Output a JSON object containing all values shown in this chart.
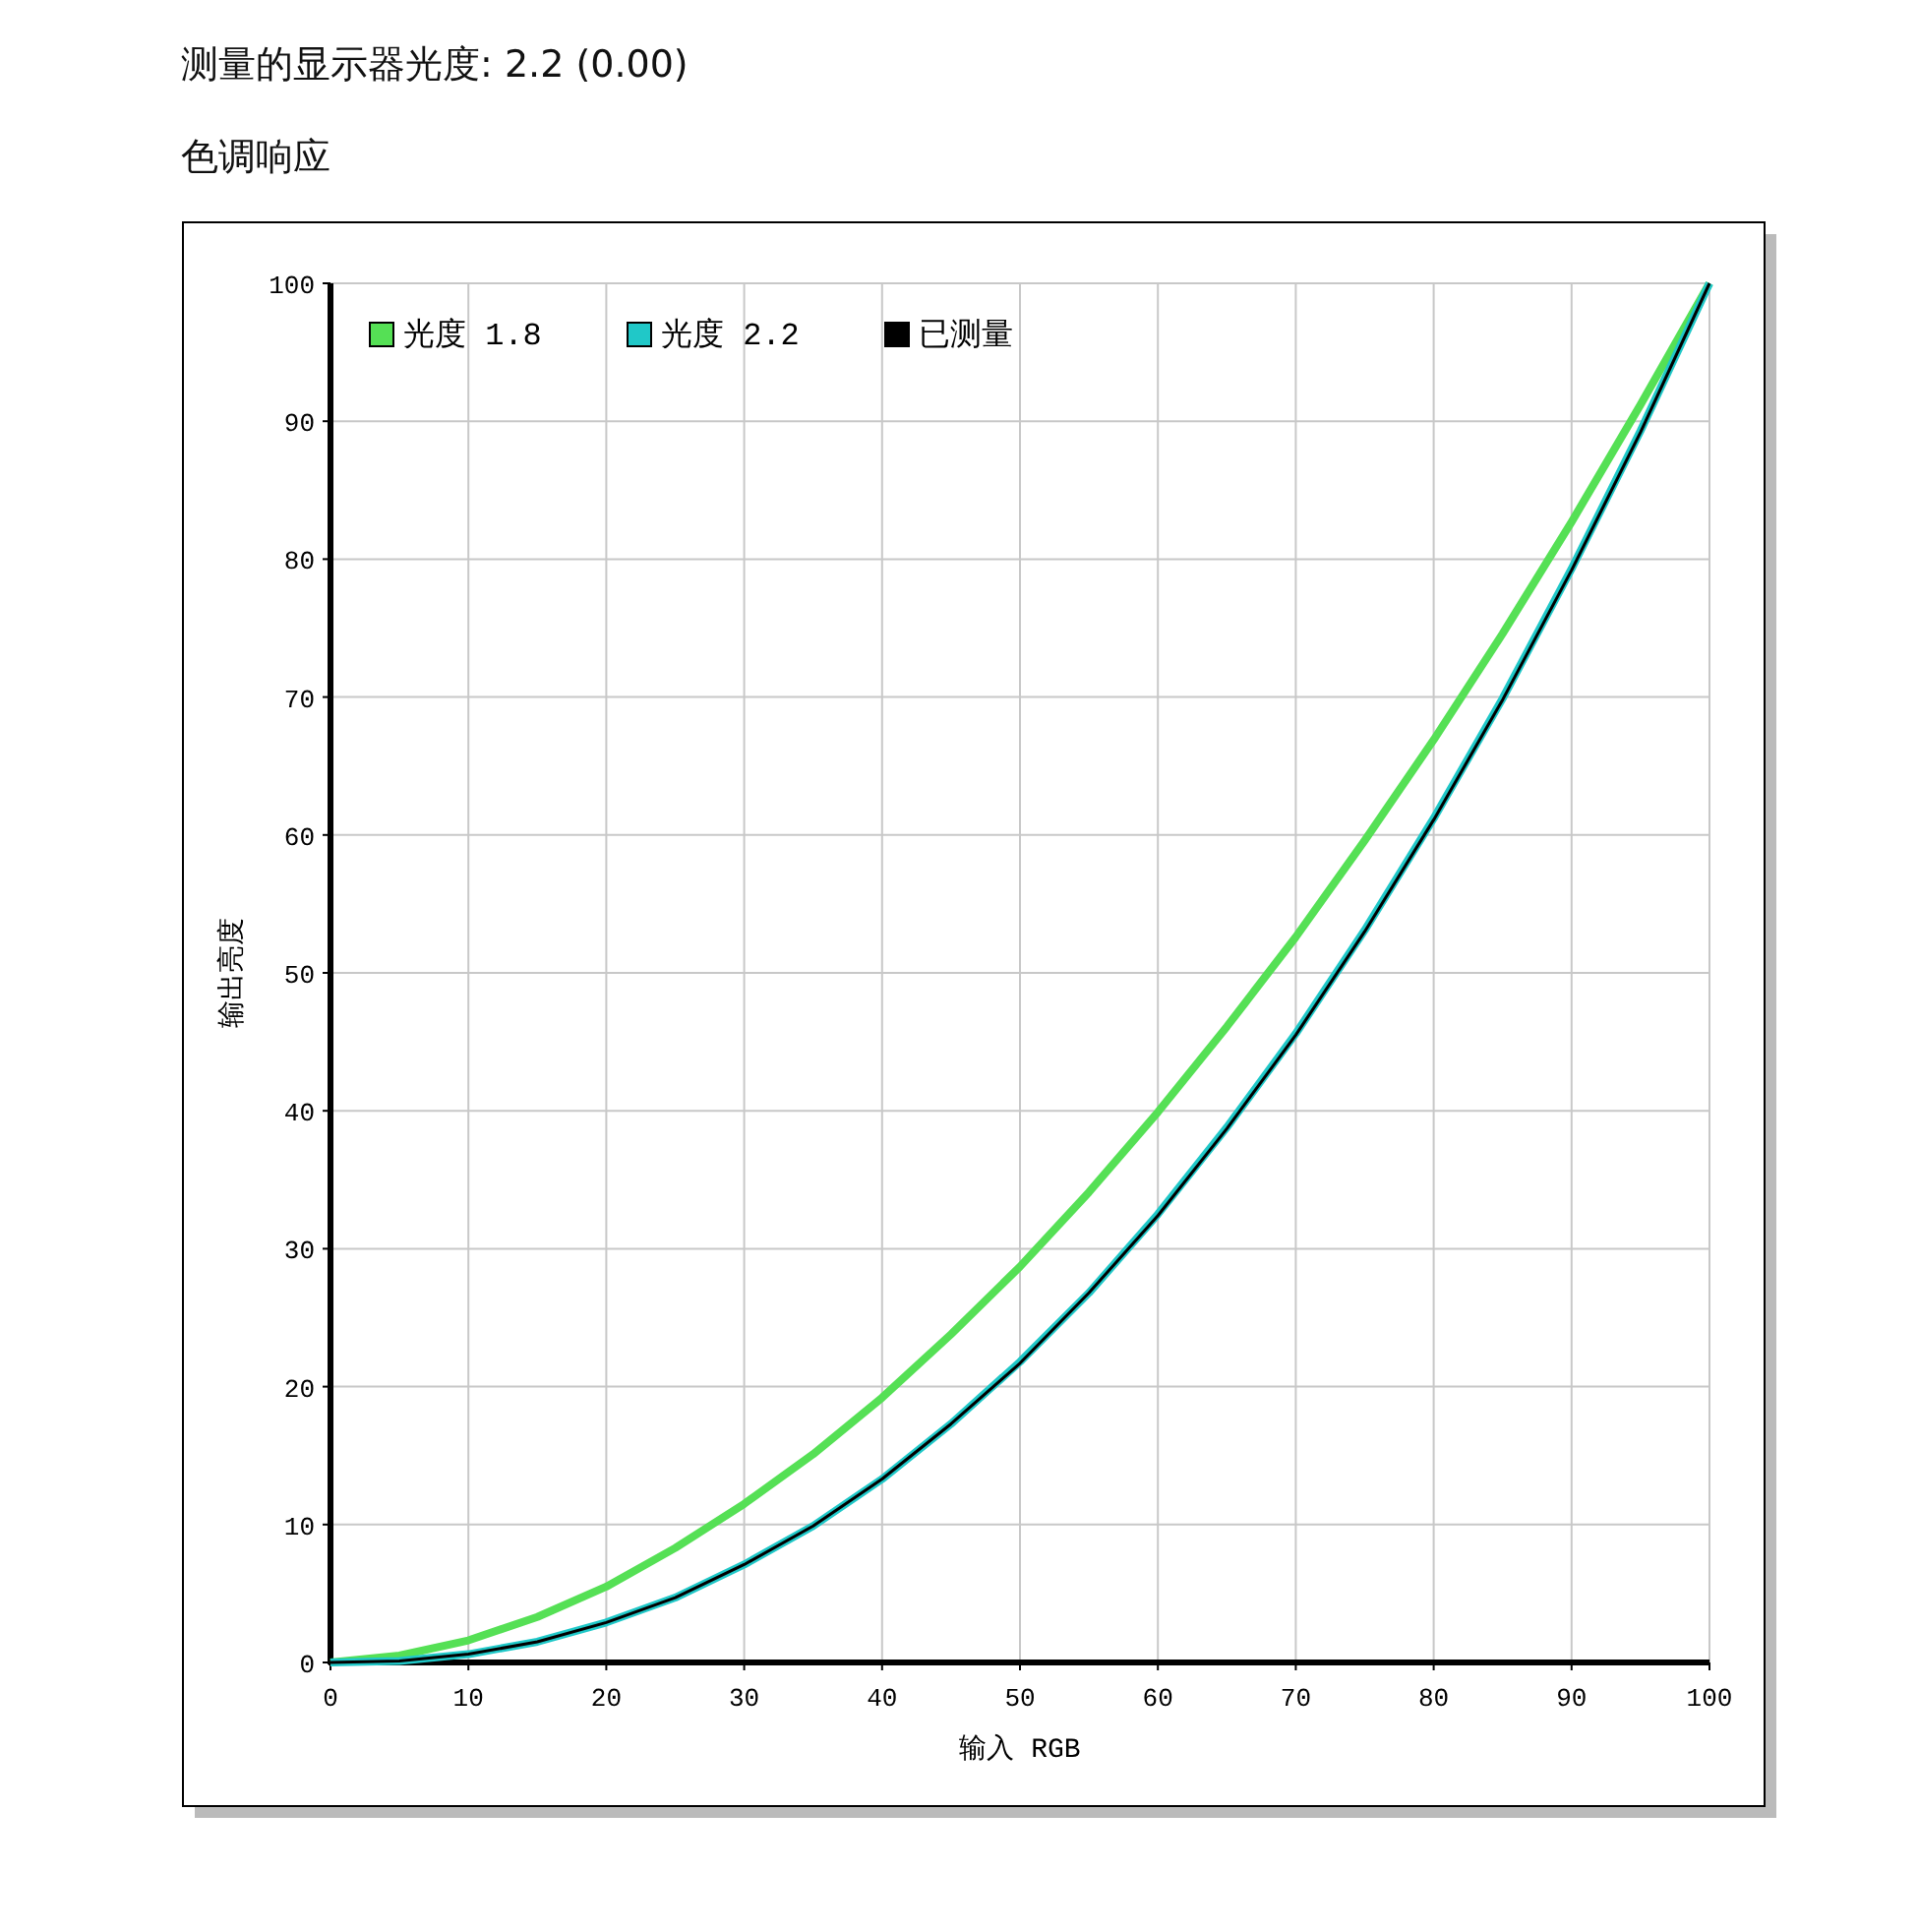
{
  "chart_data": {
    "type": "line",
    "title": "测量的显示器光度:  2.2 (0.00)",
    "subtitle": "色调响应",
    "xlabel": "输入 RGB",
    "ylabel": "输出亮度",
    "xlim": [
      0,
      100
    ],
    "ylim": [
      0,
      100
    ],
    "xticks": [
      0,
      10,
      20,
      30,
      40,
      50,
      60,
      70,
      80,
      90,
      100
    ],
    "yticks": [
      0,
      10,
      20,
      30,
      40,
      50,
      60,
      70,
      80,
      90,
      100
    ],
    "grid": true,
    "legend": "top left",
    "marker": "none",
    "line_style": "solid",
    "x": [
      0,
      5,
      10,
      15,
      20,
      25,
      30,
      35,
      40,
      45,
      50,
      55,
      60,
      65,
      70,
      75,
      80,
      85,
      90,
      95,
      100
    ],
    "series": [
      {
        "name": "光度 1.8",
        "color": "#55e055",
        "values": [
          0,
          0.5,
          1.6,
          3.3,
          5.5,
          8.3,
          11.5,
          15.1,
          19.2,
          23.8,
          28.7,
          34.1,
          39.9,
          46.1,
          52.6,
          59.6,
          66.9,
          74.6,
          82.7,
          91.2,
          100
        ]
      },
      {
        "name": "光度 2.2",
        "color": "#20c8c8",
        "values": [
          0,
          0.1,
          0.6,
          1.5,
          2.9,
          4.7,
          7.1,
          9.9,
          13.3,
          17.3,
          21.8,
          26.8,
          32.5,
          38.8,
          45.6,
          53.1,
          61.2,
          69.9,
          79.3,
          89.3,
          100
        ]
      },
      {
        "name": "已测量",
        "color": "#000000",
        "values": [
          0,
          0.1,
          0.6,
          1.5,
          2.9,
          4.7,
          7.1,
          9.9,
          13.3,
          17.3,
          21.7,
          26.8,
          32.4,
          38.7,
          45.5,
          53.0,
          61.1,
          69.8,
          79.2,
          89.2,
          100
        ]
      }
    ]
  }
}
